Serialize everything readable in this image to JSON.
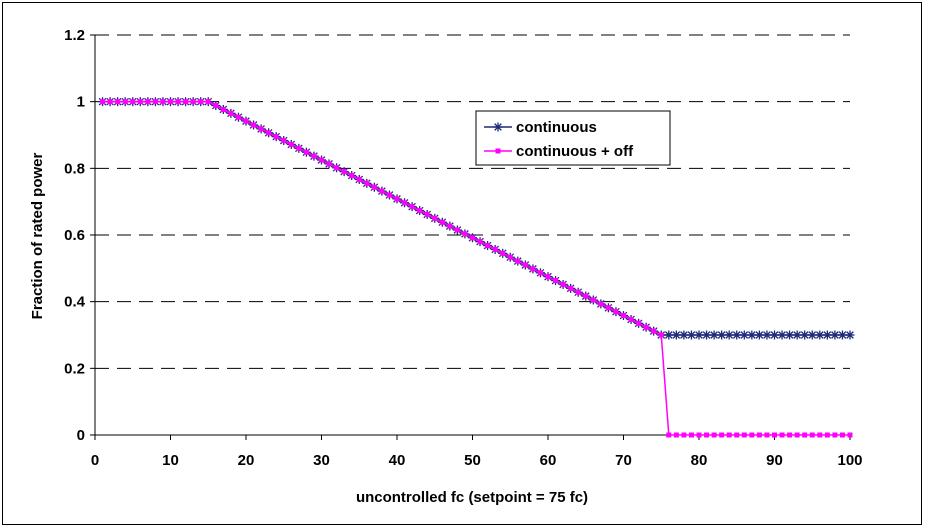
{
  "chart_data": {
    "type": "line",
    "xlabel": "uncontrolled fc (setpoint = 75 fc)",
    "ylabel": "Fraction of rated power",
    "xlim": [
      0,
      100
    ],
    "ylim": [
      0,
      1.2
    ],
    "x_ticks": [
      "0",
      "10",
      "20",
      "30",
      "40",
      "50",
      "60",
      "70",
      "80",
      "90",
      "100"
    ],
    "y_ticks": [
      "0",
      "0.2",
      "0.4",
      "0.6",
      "0.8",
      "1",
      "1.2"
    ],
    "grid": "horizontal dashed",
    "legend_position": "upper-middle-right",
    "series": [
      {
        "name": "continuous",
        "color": "#1f2a7a",
        "marker": "asterisk",
        "points": [
          [
            1,
            1.0
          ],
          [
            15,
            1.0
          ],
          [
            75,
            0.3
          ],
          [
            100,
            0.3
          ]
        ]
      },
      {
        "name": "continuous + off",
        "color": "#ff00ff",
        "marker": "square",
        "points": [
          [
            1,
            1.0
          ],
          [
            15,
            1.0
          ],
          [
            75,
            0.3
          ],
          [
            76,
            0.0
          ],
          [
            100,
            0.0
          ]
        ]
      }
    ]
  }
}
